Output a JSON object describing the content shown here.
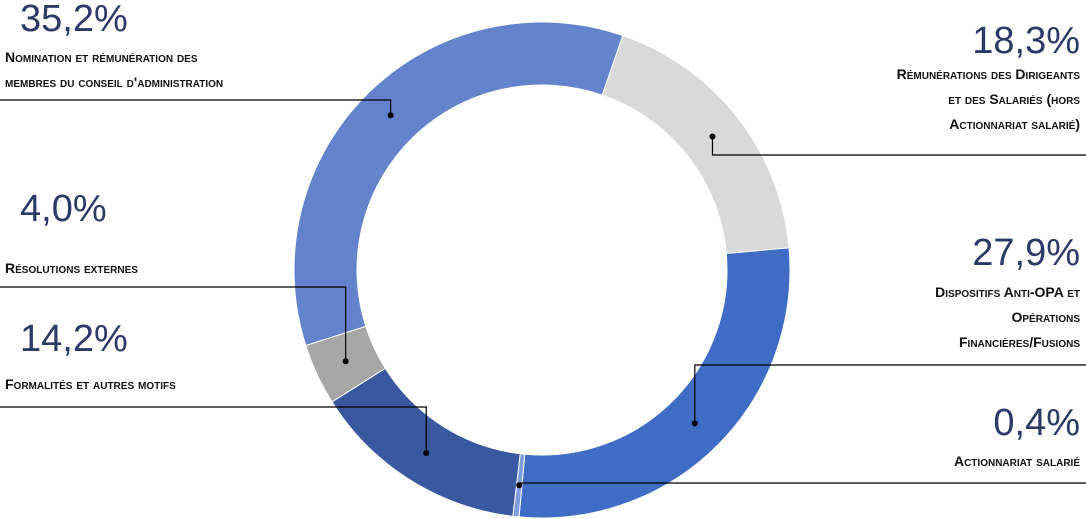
{
  "chart_data": {
    "type": "pie",
    "variant": "donut",
    "title": "",
    "slices": [
      {
        "label": "Rémunérations des Dirigeants\net des Salariés (hors\nActionnariat salarié)",
        "value_label": "18,3%",
        "value": 18.3,
        "color": "#d9d9d9"
      },
      {
        "label": "Dispositifs Anti-OPA et\nOpérations\nFinancières/Fusions",
        "value_label": "27,9%",
        "value": 27.9,
        "color": "#3f6cc4"
      },
      {
        "label": "Actionnariat salarié",
        "value_label": "0,4%",
        "value": 0.4,
        "color": "#7f9ee0"
      },
      {
        "label": "Formalités et autres motifs",
        "value_label": "14,2%",
        "value": 14.2,
        "color": "#38589f"
      },
      {
        "label": "Résolutions externes",
        "value_label": "4,0%",
        "value": 4.0,
        "color": "#a6a6a6"
      },
      {
        "label": "Nomination et rémunération des\nmembres du conseil d'administration",
        "value_label": "35,2%",
        "value": 35.2,
        "color": "#6383cc"
      }
    ]
  }
}
